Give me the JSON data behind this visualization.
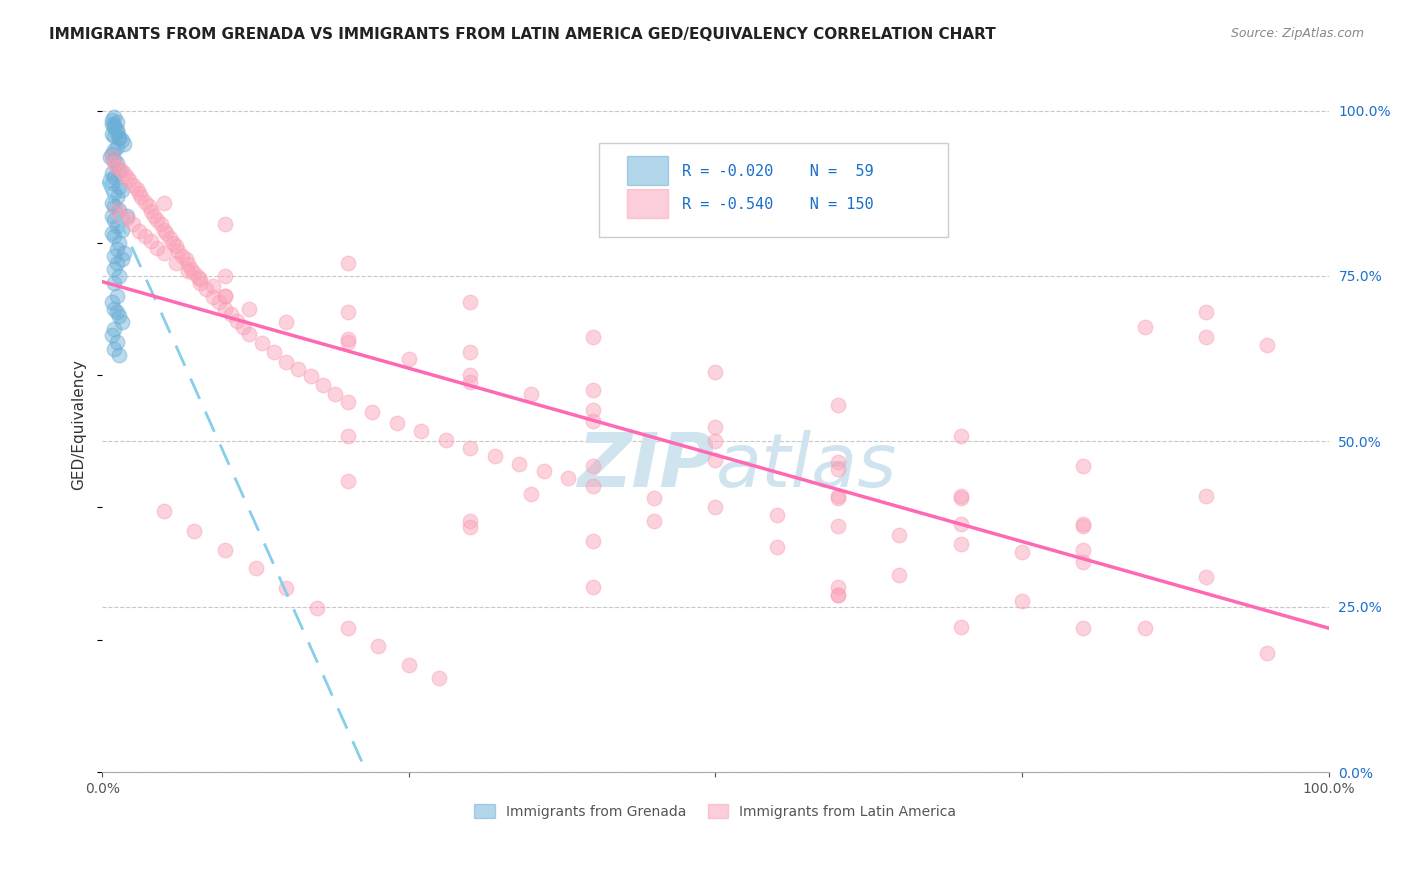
{
  "title": "IMMIGRANTS FROM GRENADA VS IMMIGRANTS FROM LATIN AMERICA GED/EQUIVALENCY CORRELATION CHART",
  "source": "Source: ZipAtlas.com",
  "ylabel": "GED/Equivalency",
  "xlim": [
    0.0,
    1.0
  ],
  "ylim": [
    0.0,
    1.05
  ],
  "ytick_labels": [
    "0.0%",
    "25.0%",
    "50.0%",
    "75.0%",
    "100.0%"
  ],
  "ytick_values": [
    0.0,
    0.25,
    0.5,
    0.75,
    1.0
  ],
  "blue_color": "#6baed6",
  "pink_color": "#fa9fb5",
  "trendline_blue": "#87ceeb",
  "trendline_pink": "#ff69b4",
  "legend_text_color": "#1a6fcc",
  "background_color": "#ffffff",
  "watermark_color": "#d0e4f0",
  "grid_color": "#c8c8c8",
  "right_axis_color": "#1a6fcc",
  "blue_x": [
    0.008,
    0.01,
    0.012,
    0.01,
    0.008,
    0.012,
    0.01,
    0.008,
    0.014,
    0.012,
    0.016,
    0.018,
    0.01,
    0.014,
    0.012,
    0.01,
    0.008,
    0.006,
    0.01,
    0.012,
    0.014,
    0.008,
    0.01,
    0.006,
    0.008,
    0.014,
    0.016,
    0.01,
    0.012,
    0.008,
    0.01,
    0.014,
    0.02,
    0.01,
    0.012,
    0.016,
    0.008,
    0.01,
    0.014,
    0.012,
    0.018,
    0.01,
    0.008,
    0.016,
    0.012,
    0.01,
    0.014,
    0.01,
    0.012,
    0.008,
    0.01,
    0.012,
    0.014,
    0.016,
    0.01,
    0.008,
    0.012,
    0.01,
    0.014
  ],
  "blue_y": [
    0.985,
    0.99,
    0.982,
    0.975,
    0.965,
    0.97,
    0.978,
    0.98,
    0.96,
    0.968,
    0.955,
    0.95,
    0.962,
    0.958,
    0.945,
    0.94,
    0.935,
    0.93,
    0.925,
    0.92,
    0.91,
    0.905,
    0.9,
    0.895,
    0.89,
    0.885,
    0.88,
    0.875,
    0.87,
    0.86,
    0.855,
    0.85,
    0.84,
    0.835,
    0.825,
    0.82,
    0.815,
    0.81,
    0.8,
    0.79,
    0.785,
    0.78,
    0.84,
    0.775,
    0.77,
    0.76,
    0.75,
    0.74,
    0.72,
    0.71,
    0.7,
    0.695,
    0.69,
    0.68,
    0.67,
    0.66,
    0.65,
    0.64,
    0.63
  ],
  "pink_x": [
    0.008,
    0.01,
    0.012,
    0.015,
    0.018,
    0.02,
    0.022,
    0.025,
    0.028,
    0.03,
    0.032,
    0.035,
    0.038,
    0.04,
    0.042,
    0.045,
    0.048,
    0.05,
    0.052,
    0.055,
    0.058,
    0.06,
    0.062,
    0.065,
    0.068,
    0.07,
    0.072,
    0.075,
    0.078,
    0.08,
    0.085,
    0.09,
    0.095,
    0.1,
    0.105,
    0.11,
    0.115,
    0.12,
    0.13,
    0.14,
    0.15,
    0.16,
    0.17,
    0.18,
    0.19,
    0.2,
    0.22,
    0.24,
    0.26,
    0.28,
    0.3,
    0.32,
    0.34,
    0.36,
    0.38,
    0.4,
    0.45,
    0.5,
    0.55,
    0.6,
    0.65,
    0.7,
    0.75,
    0.8,
    0.85,
    0.9,
    0.95,
    0.012,
    0.015,
    0.02,
    0.025,
    0.03,
    0.035,
    0.04,
    0.045,
    0.05,
    0.06,
    0.07,
    0.08,
    0.09,
    0.1,
    0.12,
    0.15,
    0.2,
    0.25,
    0.3,
    0.35,
    0.4,
    0.5,
    0.6,
    0.7,
    0.8,
    0.9,
    0.05,
    0.1,
    0.2,
    0.3,
    0.4,
    0.5,
    0.6,
    0.7,
    0.8,
    0.9,
    0.1,
    0.2,
    0.3,
    0.4,
    0.5,
    0.6,
    0.7,
    0.8,
    0.1,
    0.2,
    0.3,
    0.4,
    0.5,
    0.6,
    0.2,
    0.4,
    0.6,
    0.8,
    0.3,
    0.6,
    0.3,
    0.6,
    0.4,
    0.7,
    0.2,
    0.4,
    0.6,
    0.7,
    0.8,
    0.9,
    0.05,
    0.075,
    0.1,
    0.125,
    0.15,
    0.175,
    0.2,
    0.225,
    0.25,
    0.275,
    0.35,
    0.45,
    0.55,
    0.65,
    0.75,
    0.85,
    0.95
  ],
  "pink_y": [
    0.93,
    0.92,
    0.915,
    0.91,
    0.905,
    0.9,
    0.895,
    0.888,
    0.882,
    0.875,
    0.87,
    0.862,
    0.855,
    0.848,
    0.84,
    0.835,
    0.828,
    0.82,
    0.815,
    0.808,
    0.8,
    0.795,
    0.788,
    0.78,
    0.775,
    0.768,
    0.76,
    0.755,
    0.748,
    0.74,
    0.73,
    0.718,
    0.71,
    0.7,
    0.692,
    0.682,
    0.672,
    0.662,
    0.648,
    0.635,
    0.62,
    0.61,
    0.598,
    0.585,
    0.572,
    0.56,
    0.545,
    0.528,
    0.515,
    0.502,
    0.49,
    0.478,
    0.465,
    0.455,
    0.445,
    0.432,
    0.415,
    0.4,
    0.388,
    0.372,
    0.358,
    0.345,
    0.332,
    0.318,
    0.672,
    0.658,
    0.645,
    0.85,
    0.84,
    0.838,
    0.828,
    0.818,
    0.81,
    0.802,
    0.792,
    0.785,
    0.77,
    0.758,
    0.745,
    0.735,
    0.72,
    0.7,
    0.68,
    0.65,
    0.625,
    0.6,
    0.572,
    0.548,
    0.5,
    0.458,
    0.415,
    0.375,
    0.695,
    0.86,
    0.828,
    0.77,
    0.71,
    0.658,
    0.605,
    0.555,
    0.508,
    0.462,
    0.418,
    0.75,
    0.695,
    0.635,
    0.578,
    0.522,
    0.468,
    0.418,
    0.372,
    0.72,
    0.655,
    0.59,
    0.53,
    0.472,
    0.418,
    0.44,
    0.35,
    0.28,
    0.218,
    0.38,
    0.268,
    0.37,
    0.268,
    0.28,
    0.22,
    0.508,
    0.462,
    0.415,
    0.375,
    0.335,
    0.295,
    0.395,
    0.365,
    0.335,
    0.308,
    0.278,
    0.248,
    0.218,
    0.19,
    0.162,
    0.142,
    0.42,
    0.38,
    0.34,
    0.298,
    0.258,
    0.218,
    0.18
  ]
}
